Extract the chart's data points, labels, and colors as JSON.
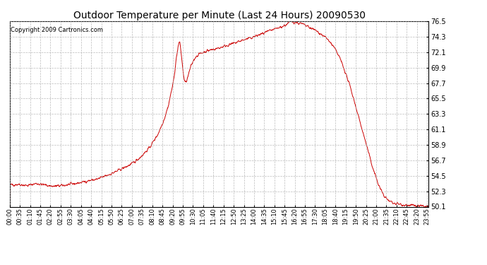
{
  "title": "Outdoor Temperature per Minute (Last 24 Hours) 20090530",
  "copyright": "Copyright 2009 Cartronics.com",
  "line_color": "#cc0000",
  "background_color": "#ffffff",
  "grid_color": "#aaaaaa",
  "ylim": [
    50.1,
    76.5
  ],
  "yticks": [
    50.1,
    52.3,
    54.5,
    56.7,
    58.9,
    61.1,
    63.3,
    65.5,
    67.7,
    69.9,
    72.1,
    74.3,
    76.5
  ],
  "x_tick_interval": 35,
  "x_labels": [
    "00:00",
    "00:35",
    "01:10",
    "01:45",
    "02:20",
    "02:55",
    "03:30",
    "04:05",
    "04:40",
    "05:15",
    "05:50",
    "06:25",
    "07:00",
    "07:35",
    "08:10",
    "08:45",
    "09:20",
    "09:55",
    "10:30",
    "11:05",
    "11:40",
    "12:15",
    "12:50",
    "13:25",
    "14:00",
    "14:35",
    "15:10",
    "15:45",
    "16:20",
    "16:55",
    "17:30",
    "18:05",
    "18:40",
    "19:15",
    "19:50",
    "20:25",
    "21:00",
    "21:35",
    "22:10",
    "22:45",
    "23:20",
    "23:55"
  ],
  "waypoints": [
    [
      0,
      53.2
    ],
    [
      30,
      53.3
    ],
    [
      60,
      53.1
    ],
    [
      90,
      53.4
    ],
    [
      120,
      53.2
    ],
    [
      150,
      53.0
    ],
    [
      180,
      53.1
    ],
    [
      210,
      53.3
    ],
    [
      240,
      53.5
    ],
    [
      270,
      53.8
    ],
    [
      300,
      54.0
    ],
    [
      330,
      54.5
    ],
    [
      360,
      55.0
    ],
    [
      390,
      55.6
    ],
    [
      420,
      56.2
    ],
    [
      450,
      57.2
    ],
    [
      480,
      58.5
    ],
    [
      510,
      60.5
    ],
    [
      530,
      62.5
    ],
    [
      545,
      64.5
    ],
    [
      555,
      66.5
    ],
    [
      563,
      68.0
    ],
    [
      570,
      70.5
    ],
    [
      575,
      72.0
    ],
    [
      580,
      73.3
    ],
    [
      585,
      73.5
    ],
    [
      590,
      71.5
    ],
    [
      595,
      69.5
    ],
    [
      600,
      68.0
    ],
    [
      605,
      67.7
    ],
    [
      610,
      68.3
    ],
    [
      615,
      69.0
    ],
    [
      620,
      69.8
    ],
    [
      625,
      70.3
    ],
    [
      630,
      70.8
    ],
    [
      635,
      71.2
    ],
    [
      640,
      71.5
    ],
    [
      650,
      71.8
    ],
    [
      660,
      72.0
    ],
    [
      680,
      72.3
    ],
    [
      700,
      72.5
    ],
    [
      720,
      72.7
    ],
    [
      740,
      73.0
    ],
    [
      760,
      73.2
    ],
    [
      780,
      73.5
    ],
    [
      800,
      73.8
    ],
    [
      820,
      74.0
    ],
    [
      840,
      74.3
    ],
    [
      860,
      74.6
    ],
    [
      880,
      74.9
    ],
    [
      900,
      75.2
    ],
    [
      920,
      75.5
    ],
    [
      940,
      75.8
    ],
    [
      955,
      76.1
    ],
    [
      963,
      76.4
    ],
    [
      968,
      76.5
    ],
    [
      975,
      76.4
    ],
    [
      985,
      76.3
    ],
    [
      995,
      76.2
    ],
    [
      1005,
      76.1
    ],
    [
      1015,
      75.9
    ],
    [
      1025,
      75.7
    ],
    [
      1035,
      75.5
    ],
    [
      1045,
      75.3
    ],
    [
      1055,
      75.1
    ],
    [
      1065,
      74.8
    ],
    [
      1075,
      74.5
    ],
    [
      1085,
      74.2
    ],
    [
      1095,
      73.8
    ],
    [
      1105,
      73.3
    ],
    [
      1115,
      72.7
    ],
    [
      1125,
      72.0
    ],
    [
      1135,
      71.2
    ],
    [
      1145,
      70.2
    ],
    [
      1155,
      69.0
    ],
    [
      1165,
      67.8
    ],
    [
      1175,
      66.5
    ],
    [
      1185,
      65.0
    ],
    [
      1195,
      63.5
    ],
    [
      1205,
      62.0
    ],
    [
      1215,
      60.5
    ],
    [
      1225,
      59.0
    ],
    [
      1235,
      57.5
    ],
    [
      1245,
      56.0
    ],
    [
      1255,
      54.8
    ],
    [
      1265,
      53.5
    ],
    [
      1275,
      52.5
    ],
    [
      1285,
      51.8
    ],
    [
      1295,
      51.2
    ],
    [
      1305,
      50.9
    ],
    [
      1320,
      50.6
    ],
    [
      1350,
      50.4
    ],
    [
      1400,
      50.2
    ],
    [
      1440,
      50.1
    ]
  ]
}
